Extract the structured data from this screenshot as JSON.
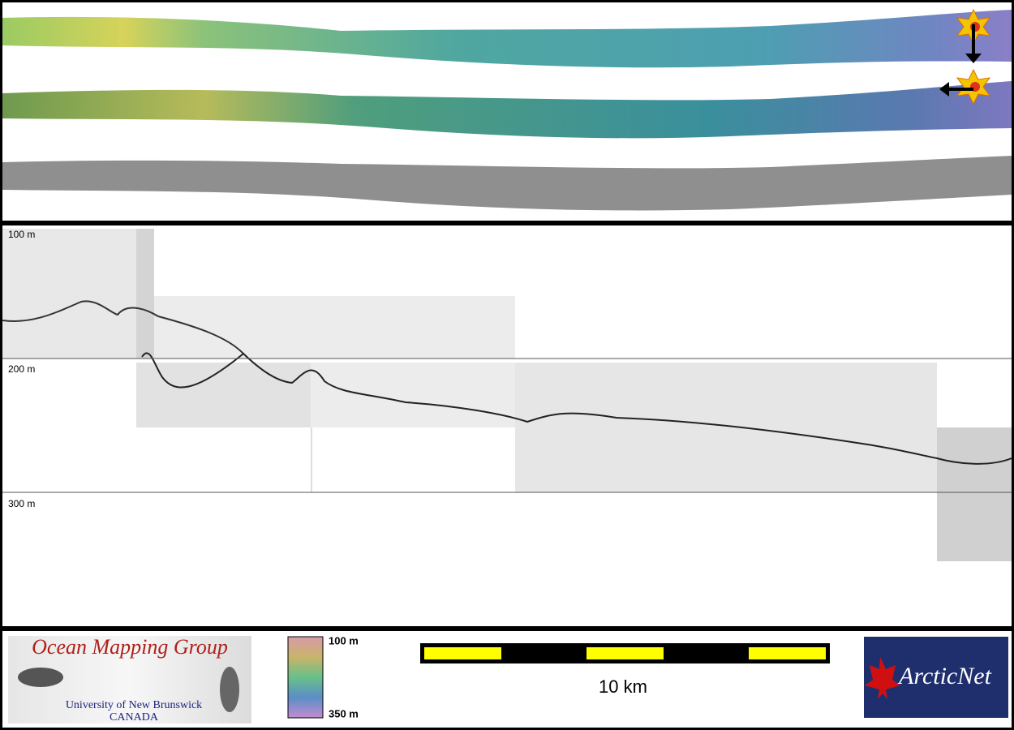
{
  "profile": {
    "depth_labels": [
      "100 m",
      "200 m",
      "300 m"
    ]
  },
  "footer": {
    "logo": {
      "title": "Ocean Mapping Group",
      "university": "University of New Brunswick",
      "country": "CANADA"
    },
    "colorbar": {
      "min_label": "100 m",
      "max_label": "350 m"
    },
    "scale_bar": {
      "label": "10 km"
    },
    "partner_logo": {
      "name": "ArcticNet"
    }
  }
}
